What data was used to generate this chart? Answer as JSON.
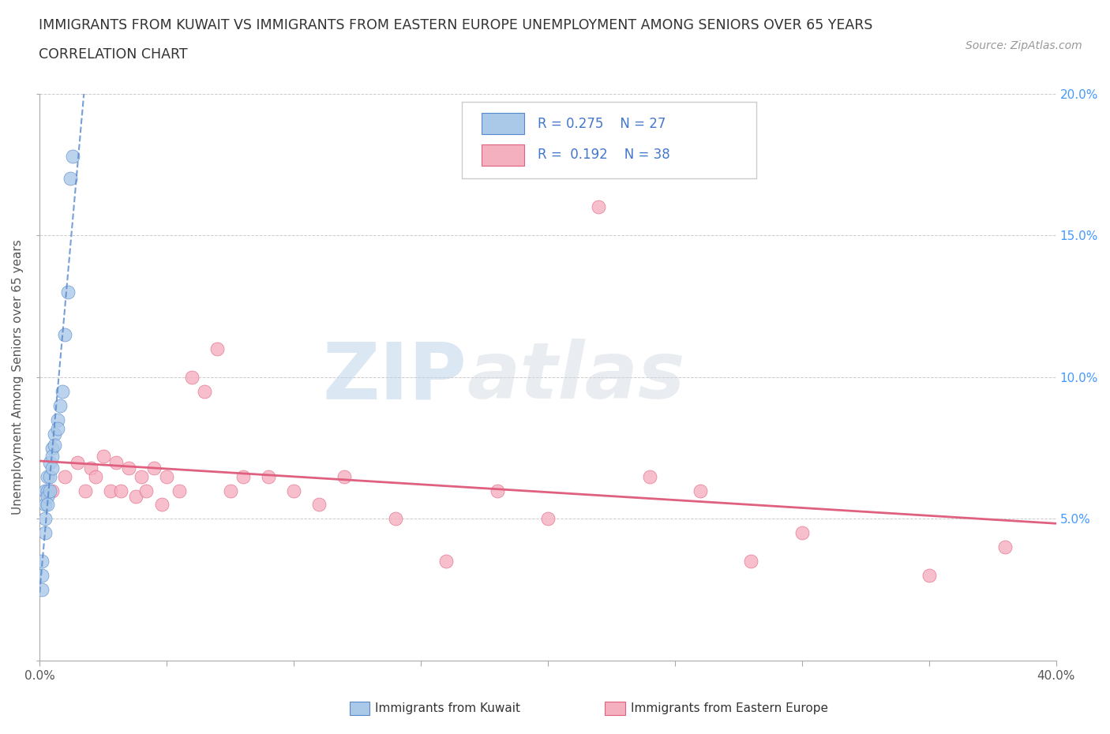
{
  "title_line1": "IMMIGRANTS FROM KUWAIT VS IMMIGRANTS FROM EASTERN EUROPE UNEMPLOYMENT AMONG SENIORS OVER 65 YEARS",
  "title_line2": "CORRELATION CHART",
  "source_text": "Source: ZipAtlas.com",
  "ylabel": "Unemployment Among Seniors over 65 years",
  "xlim": [
    0.0,
    0.4
  ],
  "ylim": [
    0.0,
    0.2
  ],
  "xticks": [
    0.0,
    0.05,
    0.1,
    0.15,
    0.2,
    0.25,
    0.3,
    0.35,
    0.4
  ],
  "yticks": [
    0.0,
    0.05,
    0.1,
    0.15,
    0.2
  ],
  "background_color": "#ffffff",
  "kuwait_color": "#aac8e8",
  "eastern_europe_color": "#f5b0c0",
  "kuwait_trend_color": "#5588cc",
  "eastern_europe_trend_color": "#e06080",
  "kuwait_R": 0.275,
  "kuwait_N": 27,
  "eastern_europe_R": 0.192,
  "eastern_europe_N": 38,
  "kuwait_x": [
    0.001,
    0.001,
    0.001,
    0.002,
    0.002,
    0.002,
    0.002,
    0.003,
    0.003,
    0.003,
    0.003,
    0.004,
    0.004,
    0.004,
    0.005,
    0.005,
    0.005,
    0.006,
    0.006,
    0.007,
    0.007,
    0.008,
    0.009,
    0.01,
    0.011,
    0.012,
    0.013
  ],
  "kuwait_y": [
    0.035,
    0.03,
    0.025,
    0.06,
    0.055,
    0.05,
    0.045,
    0.065,
    0.06,
    0.058,
    0.055,
    0.07,
    0.065,
    0.06,
    0.075,
    0.072,
    0.068,
    0.08,
    0.076,
    0.085,
    0.082,
    0.09,
    0.095,
    0.115,
    0.13,
    0.17,
    0.178
  ],
  "eastern_europe_x": [
    0.005,
    0.01,
    0.015,
    0.018,
    0.02,
    0.022,
    0.025,
    0.028,
    0.03,
    0.032,
    0.035,
    0.038,
    0.04,
    0.042,
    0.045,
    0.048,
    0.05,
    0.055,
    0.06,
    0.065,
    0.07,
    0.075,
    0.08,
    0.09,
    0.1,
    0.11,
    0.12,
    0.14,
    0.16,
    0.18,
    0.2,
    0.22,
    0.24,
    0.26,
    0.28,
    0.3,
    0.35,
    0.38
  ],
  "eastern_europe_y": [
    0.06,
    0.065,
    0.07,
    0.06,
    0.068,
    0.065,
    0.072,
    0.06,
    0.07,
    0.06,
    0.068,
    0.058,
    0.065,
    0.06,
    0.068,
    0.055,
    0.065,
    0.06,
    0.1,
    0.095,
    0.11,
    0.06,
    0.065,
    0.065,
    0.06,
    0.055,
    0.065,
    0.05,
    0.035,
    0.06,
    0.05,
    0.16,
    0.065,
    0.06,
    0.035,
    0.045,
    0.03,
    0.04
  ]
}
